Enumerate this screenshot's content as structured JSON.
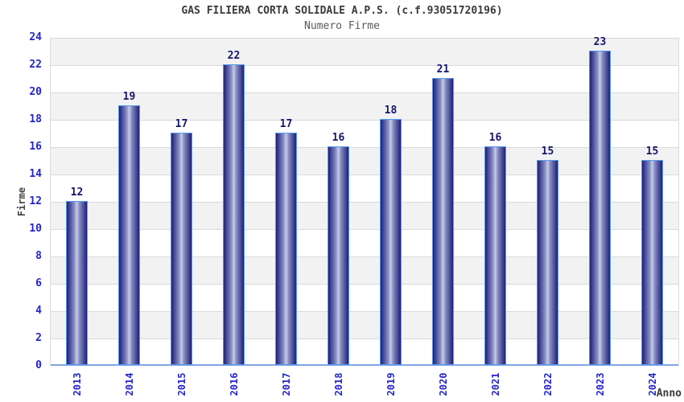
{
  "chart_data": {
    "type": "bar",
    "title": "GAS FILIERA CORTA SOLIDALE A.P.S. (c.f.93051720196)",
    "subtitle": "Numero Firme",
    "xlabel": "Anno",
    "ylabel": "Firme",
    "categories": [
      "2013",
      "2014",
      "2015",
      "2016",
      "2017",
      "2018",
      "2019",
      "2020",
      "2021",
      "2022",
      "2023",
      "2024"
    ],
    "values": [
      12,
      19,
      17,
      22,
      17,
      16,
      18,
      21,
      16,
      15,
      23,
      15
    ],
    "ylim": [
      0,
      24
    ],
    "ytick_step": 2,
    "grid": "horizontal-bands",
    "legend": "none",
    "colors": {
      "bar_border": "#559af0",
      "bar_edge_dark": "#1f1f7a",
      "bar_mid": "#8890c4",
      "bar_center_light": "#c7cde8",
      "tick_label": "#2424cc",
      "value_label": "#16166b",
      "band_gray": "#f2f2f2",
      "band_white": "#ffffff",
      "gridline": "#d9d9d9",
      "axis_line": "#7ea6e0",
      "title": "#3a3a3a",
      "subtitle": "#5a5a5a"
    }
  }
}
